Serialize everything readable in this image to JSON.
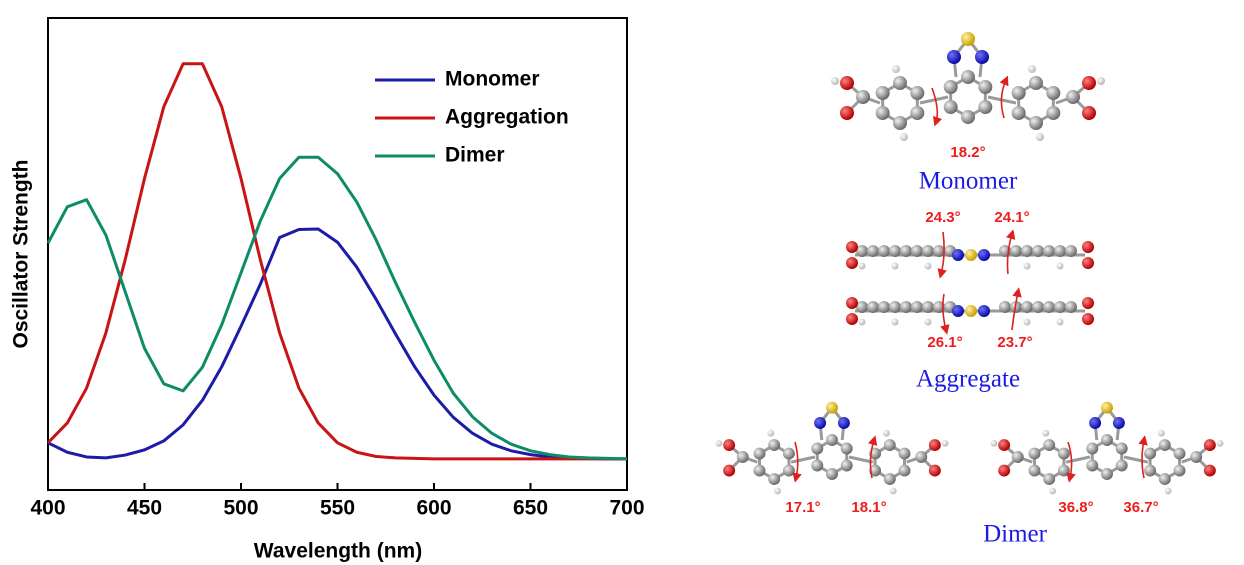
{
  "chart_data": {
    "type": "line",
    "x_label": "Wavelength (nm)",
    "y_label": "Oscillator Strength",
    "x": [
      400,
      410,
      420,
      430,
      440,
      450,
      460,
      470,
      480,
      490,
      500,
      510,
      520,
      530,
      540,
      550,
      560,
      570,
      580,
      590,
      600,
      610,
      620,
      630,
      640,
      650,
      660,
      670,
      680,
      690,
      700
    ],
    "series": [
      {
        "name": "Monomer",
        "color": "#1c1ca8",
        "values": [
          0.1,
          0.08,
          0.07,
          0.068,
          0.074,
          0.085,
          0.104,
          0.138,
          0.19,
          0.261,
          0.347,
          0.436,
          0.535,
          0.552,
          0.553,
          0.525,
          0.472,
          0.404,
          0.331,
          0.261,
          0.201,
          0.154,
          0.12,
          0.097,
          0.083,
          0.075,
          0.07,
          0.068,
          0.067,
          0.066,
          0.066
        ]
      },
      {
        "name": "Aggregation",
        "color": "#c81414",
        "values": [
          0.1,
          0.142,
          0.216,
          0.333,
          0.488,
          0.66,
          0.812,
          0.903,
          0.903,
          0.812,
          0.66,
          0.488,
          0.333,
          0.216,
          0.142,
          0.1,
          0.08,
          0.071,
          0.068,
          0.067,
          0.066,
          0.066,
          0.066,
          0.066,
          0.066,
          0.066,
          0.066,
          0.066,
          0.066,
          0.066,
          0.066
        ]
      },
      {
        "name": "Dimer",
        "color": "#0e8c6a",
        "values": [
          0.523,
          0.6,
          0.615,
          0.54,
          0.42,
          0.3,
          0.225,
          0.21,
          0.26,
          0.35,
          0.46,
          0.57,
          0.66,
          0.705,
          0.705,
          0.67,
          0.61,
          0.53,
          0.44,
          0.355,
          0.275,
          0.205,
          0.155,
          0.12,
          0.097,
          0.083,
          0.075,
          0.07,
          0.068,
          0.067,
          0.066
        ]
      }
    ],
    "xlim": [
      400,
      700
    ],
    "xticks": [
      400,
      450,
      500,
      550,
      600,
      650,
      700
    ],
    "ylim": [
      0,
      1
    ],
    "legend": "top-right"
  },
  "structures": {
    "monomer": {
      "label": "Monomer",
      "angles": [
        "18.2°"
      ]
    },
    "aggregate": {
      "label": "Aggregate",
      "angles": [
        "24.3°",
        "24.1°",
        "26.1°",
        "23.7°"
      ]
    },
    "dimer": {
      "label": "Dimer",
      "angles": [
        "17.1°",
        "18.1°",
        "36.8°",
        "36.7°"
      ]
    }
  }
}
